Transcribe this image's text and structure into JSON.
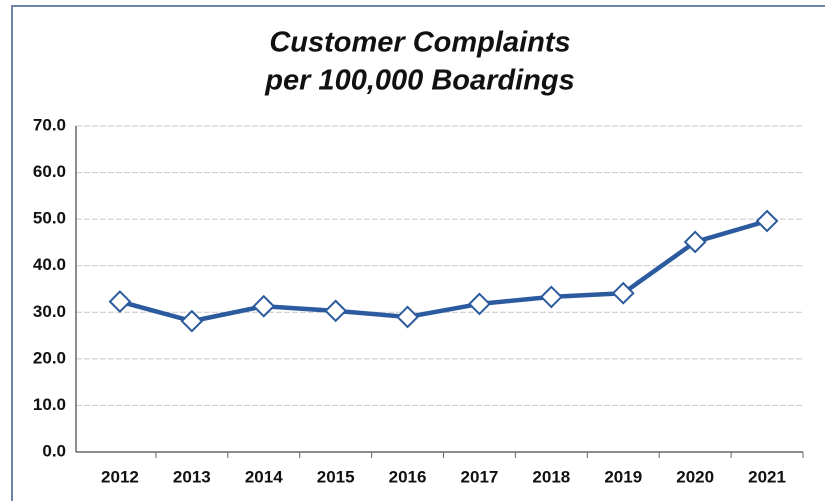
{
  "chart_data": {
    "type": "line",
    "title": [
      "Customer Complaints",
      "per 100,000 Boardings"
    ],
    "categories": [
      "2012",
      "2013",
      "2014",
      "2015",
      "2016",
      "2017",
      "2018",
      "2019",
      "2020",
      "2021"
    ],
    "series": [
      {
        "color": "#2b5b9e",
        "values": [
          32.3,
          28.1,
          31.3,
          30.3,
          29.0,
          31.8,
          33.3,
          34.1,
          45.1,
          49.6
        ]
      }
    ],
    "ylim": [
      0,
      70
    ],
    "yticks": [
      {
        "value": 0,
        "label": "0.0"
      },
      {
        "value": 10,
        "label": "10.0"
      },
      {
        "value": 20,
        "label": "20.0"
      },
      {
        "value": 30,
        "label": "30.0"
      },
      {
        "value": 40,
        "label": "40.0"
      },
      {
        "value": 50,
        "label": "50.0"
      },
      {
        "value": 60,
        "label": "60.0"
      },
      {
        "value": 70,
        "label": "70.0"
      }
    ],
    "grid": true
  }
}
